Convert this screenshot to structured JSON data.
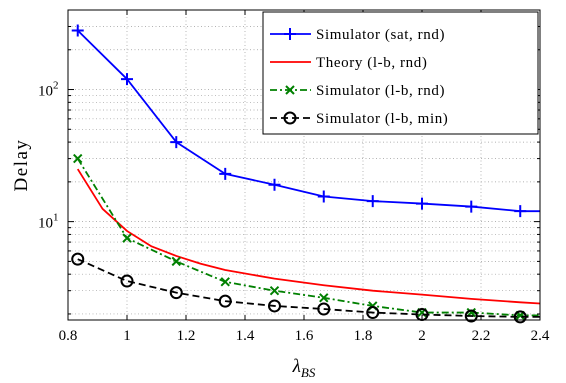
{
  "chart_data": {
    "type": "line",
    "xlabel": "λ",
    "xlabel_subscript": "BS",
    "ylabel": "Delay",
    "xlim": [
      0.8,
      2.4
    ],
    "ylim": [
      1.8,
      400
    ],
    "yscale": "log",
    "grid": true,
    "legend_position": "top-right",
    "x_ticks": [
      "0.8",
      "1",
      "1.2",
      "1.4",
      "1.6",
      "1.8",
      "2",
      "2.2",
      "2.4"
    ],
    "y_ticks": [
      {
        "base": "10",
        "exp": "1",
        "value": 10
      },
      {
        "base": "10",
        "exp": "2",
        "value": 100
      }
    ],
    "series": [
      {
        "name": "Simulator (sat, rnd)",
        "color": "#0000ff",
        "dash": "solid",
        "marker": "plus",
        "x": [
          0.833,
          1.0,
          1.167,
          1.333,
          1.5,
          1.667,
          1.833,
          2.0,
          2.167,
          2.333,
          2.4
        ],
        "y": [
          280,
          120,
          40,
          23,
          19,
          15.5,
          14.3,
          13.7,
          13.0,
          12.0,
          12.0
        ]
      },
      {
        "name": "Theory (l-b, rnd)",
        "color": "#ff0000",
        "dash": "solid",
        "marker": "none",
        "x": [
          0.833,
          0.917,
          1.0,
          1.083,
          1.167,
          1.25,
          1.333,
          1.5,
          1.667,
          1.833,
          2.0,
          2.167,
          2.333,
          2.4
        ],
        "y": [
          25,
          12.5,
          8.5,
          6.5,
          5.5,
          4.8,
          4.3,
          3.7,
          3.3,
          3.0,
          2.8,
          2.6,
          2.45,
          2.4
        ]
      },
      {
        "name": "Simulator (l-b, rnd)",
        "color": "#008000",
        "dash": "dashdot",
        "marker": "x",
        "x": [
          0.833,
          1.0,
          1.167,
          1.333,
          1.5,
          1.667,
          1.833,
          2.0,
          2.167,
          2.333,
          2.4
        ],
        "y": [
          30,
          7.5,
          5.0,
          3.5,
          3.0,
          2.65,
          2.3,
          2.05,
          2.05,
          1.95,
          1.95
        ]
      },
      {
        "name": "Simulator (l-b, min)",
        "color": "#000000",
        "dash": "dashed",
        "marker": "circle",
        "x": [
          0.833,
          1.0,
          1.167,
          1.333,
          1.5,
          1.667,
          1.833,
          2.0,
          2.167,
          2.333,
          2.4
        ],
        "y": [
          5.2,
          3.55,
          2.9,
          2.5,
          2.3,
          2.18,
          2.05,
          1.98,
          1.93,
          1.9,
          1.9
        ]
      }
    ]
  }
}
